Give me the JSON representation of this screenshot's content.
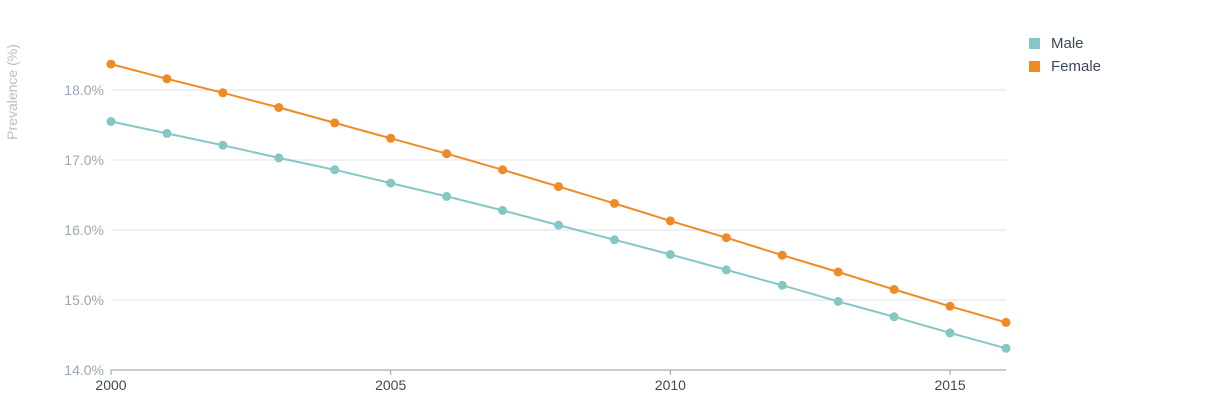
{
  "chart_data": {
    "type": "line",
    "title": "",
    "xlabel": "",
    "ylabel": "Prevalence (%)",
    "x": [
      2000,
      2001,
      2002,
      2003,
      2004,
      2005,
      2006,
      2007,
      2008,
      2009,
      2010,
      2011,
      2012,
      2013,
      2014,
      2015,
      2016
    ],
    "xticks": [
      "2000",
      "2005",
      "2010",
      "2015"
    ],
    "xtick_values": [
      2000,
      2005,
      2010,
      2015
    ],
    "xlim": [
      2000,
      2016
    ],
    "ylim": [
      14.0,
      18.8
    ],
    "yticks": [
      "14.0%",
      "15.0%",
      "16.0%",
      "17.0%",
      "18.0%"
    ],
    "ytick_values": [
      14.0,
      15.0,
      16.0,
      17.0,
      18.0
    ],
    "grid": true,
    "legend_position": "top-right",
    "series": [
      {
        "name": "Male",
        "color": "#86c6c4",
        "values": [
          17.55,
          17.38,
          17.21,
          17.03,
          16.86,
          16.67,
          16.48,
          16.28,
          16.07,
          15.86,
          15.65,
          15.43,
          15.21,
          14.98,
          14.76,
          14.53,
          14.31
        ]
      },
      {
        "name": "Female",
        "color": "#f08a24",
        "values": [
          18.37,
          18.16,
          17.96,
          17.75,
          17.53,
          17.31,
          17.09,
          16.86,
          16.62,
          16.38,
          16.13,
          15.89,
          15.64,
          15.4,
          15.15,
          14.91,
          14.68
        ]
      }
    ]
  }
}
